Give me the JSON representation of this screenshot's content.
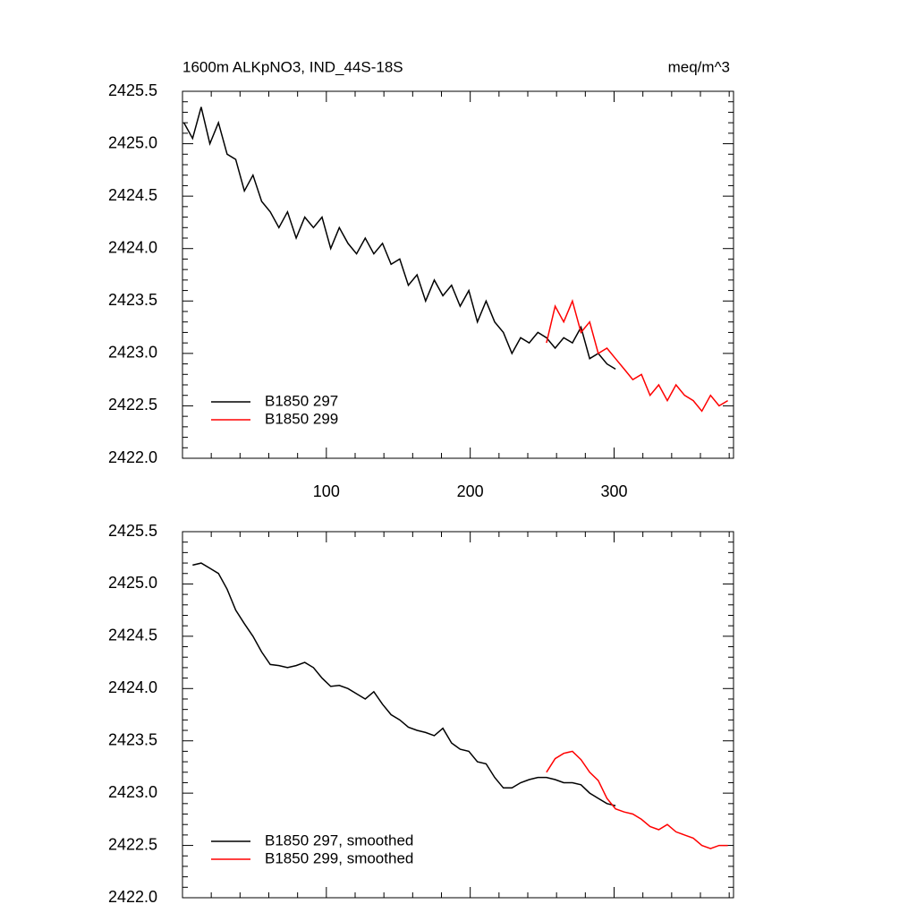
{
  "chart_data": [
    {
      "type": "line",
      "title": "1600m ALKpNO3, IND_44S-18S",
      "units": "meq/m^3",
      "x": [
        1,
        7,
        13,
        19,
        25,
        31,
        37,
        43,
        49,
        55,
        61,
        67,
        73,
        79,
        85,
        91,
        97,
        103,
        109,
        115,
        121,
        127,
        133,
        139,
        145,
        151,
        157,
        163,
        169,
        175,
        181,
        187,
        193,
        199,
        205,
        211,
        217,
        223,
        229,
        235,
        241,
        247,
        253,
        259,
        265,
        271,
        277,
        283,
        289,
        295,
        301,
        307,
        313,
        319,
        325,
        331,
        337,
        343,
        349,
        355,
        361,
        367,
        373,
        379
      ],
      "series": [
        {
          "name": "B1850 297",
          "color": "#000000",
          "values": [
            2425.2,
            2425.05,
            2425.35,
            2425.0,
            2425.2,
            2424.9,
            2424.85,
            2424.55,
            2424.7,
            2424.45,
            2424.35,
            2424.2,
            2424.35,
            2424.1,
            2424.3,
            2424.2,
            2424.3,
            2424.0,
            2424.2,
            2424.05,
            2423.95,
            2424.1,
            2423.95,
            2424.05,
            2423.85,
            2423.9,
            2423.65,
            2423.75,
            2423.5,
            2423.7,
            2423.55,
            2423.65,
            2423.45,
            2423.6,
            2423.3,
            2423.5,
            2423.3,
            2423.2,
            2423.0,
            2423.15,
            2423.1,
            2423.2,
            2423.15,
            2423.05,
            2423.15,
            2423.1,
            2423.25,
            2422.95,
            2423.0,
            2422.9,
            2422.85,
            null,
            null,
            null,
            null,
            null,
            null,
            null,
            null,
            null,
            null,
            null,
            null,
            null
          ]
        },
        {
          "name": "B1850 299",
          "color": "#ff0000",
          "values": [
            null,
            null,
            null,
            null,
            null,
            null,
            null,
            null,
            null,
            null,
            null,
            null,
            null,
            null,
            null,
            null,
            null,
            null,
            null,
            null,
            null,
            null,
            null,
            null,
            null,
            null,
            null,
            null,
            null,
            null,
            null,
            null,
            null,
            null,
            null,
            null,
            null,
            null,
            null,
            null,
            null,
            null,
            2423.1,
            2423.45,
            2423.3,
            2423.5,
            2423.2,
            2423.3,
            2423.0,
            2423.05,
            2422.95,
            2422.85,
            2422.75,
            2422.8,
            2422.6,
            2422.7,
            2422.55,
            2422.7,
            2422.6,
            2422.55,
            2422.45,
            2422.6,
            2422.5,
            2422.55
          ]
        }
      ],
      "xlim": [
        0,
        383
      ],
      "xticks": [
        100,
        200,
        300
      ],
      "show_xtick_labels": true,
      "ylim": [
        2422.0,
        2425.5
      ],
      "yticks": [
        {
          "value": 2422.0,
          "label": "2422.0"
        },
        2422.5,
        {
          "value": 2423.0,
          "label": "2423.0"
        },
        2423.5,
        {
          "value": 2424.0,
          "label": "2424.0"
        },
        2424.5,
        {
          "value": 2425.0,
          "label": "2425.0"
        },
        2425.5
      ],
      "legend": "lower left"
    },
    {
      "type": "line",
      "x": [
        1,
        7,
        13,
        19,
        25,
        31,
        37,
        43,
        49,
        55,
        61,
        67,
        73,
        79,
        85,
        91,
        97,
        103,
        109,
        115,
        121,
        127,
        133,
        139,
        145,
        151,
        157,
        163,
        169,
        175,
        181,
        187,
        193,
        199,
        205,
        211,
        217,
        223,
        229,
        235,
        241,
        247,
        253,
        259,
        265,
        271,
        277,
        283,
        289,
        295,
        301,
        307,
        313,
        319,
        325,
        331,
        337,
        343,
        349,
        355,
        361,
        367,
        373,
        379
      ],
      "series": [
        {
          "name": "B1850 297, smoothed",
          "color": "#000000",
          "values": [
            null,
            2425.18,
            2425.2,
            2425.15,
            2425.1,
            2424.95,
            2424.75,
            2424.62,
            2424.5,
            2424.35,
            2424.23,
            2424.22,
            2424.2,
            2424.22,
            2424.25,
            2424.2,
            2424.1,
            2424.02,
            2424.03,
            2424.0,
            2423.95,
            2423.9,
            2423.97,
            2423.85,
            2423.75,
            2423.7,
            2423.63,
            2423.6,
            2423.58,
            2423.55,
            2423.62,
            2423.48,
            2423.42,
            2423.4,
            2423.3,
            2423.28,
            2423.15,
            2423.05,
            2423.05,
            2423.1,
            2423.13,
            2423.15,
            2423.15,
            2423.13,
            2423.1,
            2423.1,
            2423.08,
            2423.0,
            2422.95,
            2422.9,
            2422.88,
            null,
            null,
            null,
            null,
            null,
            null,
            null,
            null,
            null,
            null,
            null,
            null,
            null
          ]
        },
        {
          "name": "B1850 299, smoothed",
          "color": "#ff0000",
          "values": [
            null,
            null,
            null,
            null,
            null,
            null,
            null,
            null,
            null,
            null,
            null,
            null,
            null,
            null,
            null,
            null,
            null,
            null,
            null,
            null,
            null,
            null,
            null,
            null,
            null,
            null,
            null,
            null,
            null,
            null,
            null,
            null,
            null,
            null,
            null,
            null,
            null,
            null,
            null,
            null,
            null,
            null,
            2423.2,
            2423.33,
            2423.38,
            2423.4,
            2423.32,
            2423.2,
            2423.12,
            2422.95,
            2422.85,
            2422.82,
            2422.8,
            2422.75,
            2422.68,
            2422.65,
            2422.7,
            2422.63,
            2422.6,
            2422.57,
            2422.5,
            2422.47,
            2422.5,
            2422.5
          ]
        }
      ],
      "xlim": [
        0,
        383
      ],
      "xticks": [
        100,
        200,
        300
      ],
      "show_xtick_labels": false,
      "ylim": [
        2422.0,
        2425.5
      ],
      "yticks": [
        {
          "value": 2422.0,
          "label": "2422.0"
        },
        2422.5,
        {
          "value": 2423.0,
          "label": "2423.0"
        },
        2423.5,
        {
          "value": 2424.0,
          "label": "2424.0"
        },
        2424.5,
        {
          "value": 2425.0,
          "label": "2425.0"
        },
        2425.5
      ],
      "legend": "lower left"
    }
  ]
}
